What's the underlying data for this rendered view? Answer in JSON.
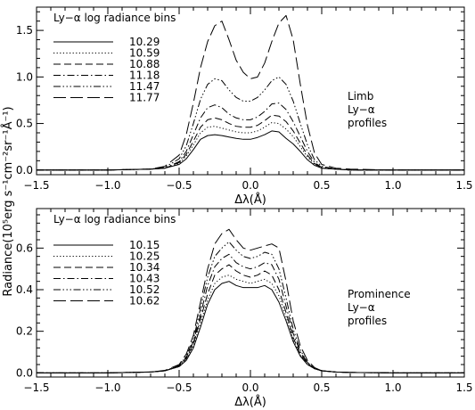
{
  "y_axis_label": "Radiance(10⁵erg s⁻¹cm⁻²sr⁻¹Å⁻¹)",
  "chart_data": [
    {
      "type": "line",
      "legend": {
        "title": "Ly−α log radiance bins",
        "placement": "top-left"
      },
      "annotation": [
        "Limb",
        "Ly−α",
        "profiles"
      ],
      "xlabel": "Δλ(Å)",
      "ylabel": "Radiance(10⁵erg s⁻¹cm⁻²sr⁻¹Å⁻¹)",
      "xlim": [
        -1.5,
        1.5
      ],
      "ylim": [
        -0.05,
        1.75
      ],
      "xticks": [
        -1.5,
        -1.0,
        -0.5,
        0.0,
        0.5,
        1.0,
        1.5
      ],
      "yticks": [
        0.0,
        0.5,
        1.0,
        1.5
      ],
      "xtick_labels": [
        "−1.5",
        "−1.0",
        "−0.5",
        "0.0",
        "0.5",
        "1.0",
        "1.5"
      ],
      "ytick_labels": [
        "0.0",
        "0.5",
        "1.0",
        "1.5"
      ],
      "grid": false,
      "x": [
        -1.5,
        -1.0,
        -0.7,
        -0.6,
        -0.5,
        -0.45,
        -0.4,
        -0.35,
        -0.3,
        -0.25,
        -0.2,
        -0.15,
        -0.1,
        -0.05,
        0.0,
        0.05,
        0.1,
        0.15,
        0.2,
        0.25,
        0.3,
        0.35,
        0.4,
        0.45,
        0.5,
        0.6,
        0.7,
        1.0,
        1.5
      ],
      "series": [
        {
          "name": "10.29",
          "dash": "solid",
          "values": [
            0.0,
            0.0,
            0.01,
            0.02,
            0.06,
            0.12,
            0.22,
            0.33,
            0.37,
            0.38,
            0.37,
            0.355,
            0.34,
            0.33,
            0.33,
            0.35,
            0.38,
            0.42,
            0.41,
            0.34,
            0.28,
            0.2,
            0.11,
            0.05,
            0.02,
            0.01,
            0.0,
            0.0,
            0.0
          ]
        },
        {
          "name": "10.59",
          "dash": "dotted",
          "values": [
            0.0,
            0.0,
            0.01,
            0.02,
            0.07,
            0.15,
            0.27,
            0.4,
            0.46,
            0.47,
            0.45,
            0.43,
            0.41,
            0.4,
            0.4,
            0.42,
            0.46,
            0.51,
            0.5,
            0.44,
            0.36,
            0.25,
            0.14,
            0.06,
            0.02,
            0.01,
            0.0,
            0.0,
            0.0
          ]
        },
        {
          "name": "10.88",
          "dash": "dashed",
          "values": [
            0.0,
            0.0,
            0.01,
            0.02,
            0.08,
            0.17,
            0.31,
            0.46,
            0.54,
            0.56,
            0.54,
            0.5,
            0.47,
            0.46,
            0.46,
            0.48,
            0.53,
            0.59,
            0.58,
            0.52,
            0.42,
            0.29,
            0.16,
            0.07,
            0.02,
            0.01,
            0.0,
            0.0,
            0.0
          ]
        },
        {
          "name": "11.18",
          "dash": "dashdot",
          "values": [
            0.0,
            0.0,
            0.01,
            0.02,
            0.09,
            0.2,
            0.38,
            0.56,
            0.67,
            0.7,
            0.67,
            0.6,
            0.56,
            0.54,
            0.54,
            0.57,
            0.63,
            0.71,
            0.72,
            0.65,
            0.52,
            0.36,
            0.2,
            0.08,
            0.03,
            0.01,
            0.0,
            0.0,
            0.0
          ]
        },
        {
          "name": "11.47",
          "dash": "dashdotdotdot",
          "values": [
            0.0,
            0.0,
            0.01,
            0.03,
            0.12,
            0.26,
            0.5,
            0.76,
            0.92,
            0.98,
            0.96,
            0.86,
            0.78,
            0.74,
            0.74,
            0.78,
            0.86,
            0.96,
            1.0,
            0.92,
            0.74,
            0.5,
            0.27,
            0.11,
            0.04,
            0.01,
            0.0,
            0.0,
            0.0
          ]
        },
        {
          "name": "11.77",
          "dash": "longdash",
          "values": [
            0.0,
            0.0,
            0.01,
            0.04,
            0.16,
            0.38,
            0.72,
            1.1,
            1.38,
            1.55,
            1.6,
            1.4,
            1.18,
            1.05,
            0.98,
            1.0,
            1.15,
            1.38,
            1.58,
            1.66,
            1.4,
            0.92,
            0.48,
            0.18,
            0.06,
            0.02,
            0.01,
            0.0,
            0.0
          ]
        }
      ]
    },
    {
      "type": "line",
      "legend": {
        "title": "Ly−α log radiance bins",
        "placement": "top-left"
      },
      "annotation": [
        "Prominence",
        "Ly−α",
        "profiles"
      ],
      "xlabel": "Δλ(Å)",
      "ylabel": "Radiance(10⁵erg s⁻¹cm⁻²sr⁻¹Å⁻¹)",
      "xlim": [
        -1.5,
        1.5
      ],
      "ylim": [
        -0.02,
        0.79
      ],
      "xticks": [
        -1.5,
        -1.0,
        -0.5,
        0.0,
        0.5,
        1.0,
        1.5
      ],
      "yticks": [
        0.0,
        0.2,
        0.4,
        0.6
      ],
      "xtick_labels": [
        "−1.5",
        "−1.0",
        "−0.5",
        "0.0",
        "0.5",
        "1.0",
        "1.5"
      ],
      "ytick_labels": [
        "0.0",
        "0.2",
        "0.4",
        "0.6"
      ],
      "grid": false,
      "x": [
        -1.5,
        -1.0,
        -0.7,
        -0.6,
        -0.5,
        -0.45,
        -0.4,
        -0.35,
        -0.3,
        -0.25,
        -0.2,
        -0.15,
        -0.1,
        -0.05,
        0.0,
        0.05,
        0.1,
        0.15,
        0.2,
        0.25,
        0.3,
        0.35,
        0.4,
        0.45,
        0.5,
        0.6,
        0.7,
        1.0,
        1.5
      ],
      "series": [
        {
          "name": "10.15",
          "dash": "solid",
          "values": [
            0.0,
            0.0,
            0.004,
            0.01,
            0.03,
            0.06,
            0.12,
            0.22,
            0.33,
            0.4,
            0.43,
            0.44,
            0.42,
            0.41,
            0.41,
            0.41,
            0.42,
            0.4,
            0.34,
            0.25,
            0.15,
            0.08,
            0.04,
            0.02,
            0.01,
            0.004,
            0.002,
            0.0,
            0.0
          ]
        },
        {
          "name": "10.25",
          "dash": "dotted",
          "values": [
            0.0,
            0.0,
            0.004,
            0.01,
            0.03,
            0.065,
            0.13,
            0.24,
            0.35,
            0.43,
            0.46,
            0.47,
            0.45,
            0.44,
            0.43,
            0.44,
            0.45,
            0.43,
            0.37,
            0.27,
            0.16,
            0.085,
            0.04,
            0.02,
            0.01,
            0.004,
            0.002,
            0.0,
            0.0
          ]
        },
        {
          "name": "10.34",
          "dash": "dashed",
          "values": [
            0.0,
            0.0,
            0.004,
            0.01,
            0.032,
            0.07,
            0.14,
            0.26,
            0.38,
            0.47,
            0.5,
            0.52,
            0.49,
            0.47,
            0.46,
            0.47,
            0.49,
            0.47,
            0.4,
            0.29,
            0.17,
            0.09,
            0.045,
            0.02,
            0.01,
            0.004,
            0.002,
            0.0,
            0.0
          ]
        },
        {
          "name": "10.43",
          "dash": "dashdot",
          "values": [
            0.0,
            0.0,
            0.004,
            0.01,
            0.034,
            0.075,
            0.15,
            0.28,
            0.42,
            0.51,
            0.55,
            0.57,
            0.53,
            0.51,
            0.5,
            0.51,
            0.53,
            0.52,
            0.45,
            0.32,
            0.19,
            0.1,
            0.05,
            0.02,
            0.01,
            0.004,
            0.002,
            0.0,
            0.0
          ]
        },
        {
          "name": "10.52",
          "dash": "dashdotdotdot",
          "values": [
            0.0,
            0.0,
            0.004,
            0.01,
            0.036,
            0.08,
            0.16,
            0.31,
            0.46,
            0.56,
            0.6,
            0.63,
            0.59,
            0.56,
            0.55,
            0.56,
            0.58,
            0.57,
            0.5,
            0.36,
            0.21,
            0.11,
            0.05,
            0.02,
            0.01,
            0.004,
            0.002,
            0.0,
            0.0
          ]
        },
        {
          "name": "10.62",
          "dash": "longdash",
          "values": [
            0.0,
            0.0,
            0.004,
            0.012,
            0.04,
            0.09,
            0.18,
            0.34,
            0.5,
            0.62,
            0.67,
            0.69,
            0.64,
            0.6,
            0.59,
            0.6,
            0.61,
            0.62,
            0.6,
            0.44,
            0.25,
            0.13,
            0.06,
            0.025,
            0.01,
            0.004,
            0.002,
            0.0,
            0.0
          ]
        }
      ]
    }
  ]
}
